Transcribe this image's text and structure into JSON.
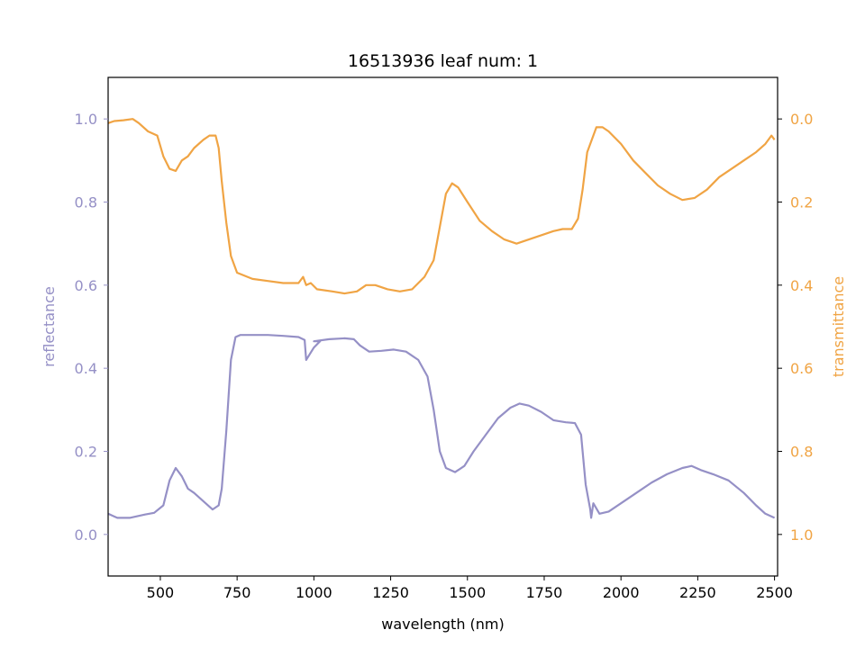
{
  "chart_data": {
    "type": "line",
    "title": "16513936 leaf num: 1",
    "xlabel": "wavelength (nm)",
    "ylabel": "reflectance",
    "ylabel_right": "transmittance",
    "xlim": [
      330,
      2510
    ],
    "ylim": [
      -0.1,
      1.1
    ],
    "ylim_right": [
      1.1,
      -0.1
    ],
    "right_axis_inverted": true,
    "x_ticks": [
      "500",
      "750",
      "1000",
      "1250",
      "1500",
      "1750",
      "2000",
      "2250",
      "2500"
    ],
    "y_ticks_left": [
      "0.0",
      "0.2",
      "0.4",
      "0.6",
      "0.8",
      "1.0"
    ],
    "y_ticks_right": [
      "0.0",
      "0.2",
      "0.4",
      "0.6",
      "0.8",
      "1.0"
    ],
    "grid": false,
    "colors": {
      "reflectance": "#9590c6",
      "transmittance": "#f0a444",
      "axes": "#000000"
    },
    "series": [
      {
        "axis": "left",
        "color": "#9590c6",
        "points": [
          [
            330,
            0.05
          ],
          [
            360,
            0.04
          ],
          [
            400,
            0.04
          ],
          [
            450,
            0.048
          ],
          [
            480,
            0.052
          ],
          [
            510,
            0.07
          ],
          [
            530,
            0.13
          ],
          [
            550,
            0.16
          ],
          [
            570,
            0.14
          ],
          [
            590,
            0.11
          ],
          [
            610,
            0.1
          ],
          [
            640,
            0.08
          ],
          [
            670,
            0.06
          ],
          [
            690,
            0.07
          ],
          [
            700,
            0.11
          ],
          [
            715,
            0.25
          ],
          [
            730,
            0.42
          ],
          [
            745,
            0.475
          ],
          [
            760,
            0.48
          ],
          [
            800,
            0.48
          ],
          [
            850,
            0.48
          ],
          [
            900,
            0.478
          ],
          [
            950,
            0.475
          ],
          [
            970,
            0.468
          ],
          [
            975,
            0.42
          ],
          [
            1000,
            0.45
          ],
          [
            1020,
            0.465
          ],
          [
            1000,
            0.465
          ],
          [
            1050,
            0.47
          ],
          [
            1100,
            0.472
          ],
          [
            1130,
            0.47
          ],
          [
            1150,
            0.455
          ],
          [
            1180,
            0.44
          ],
          [
            1220,
            0.442
          ],
          [
            1260,
            0.445
          ],
          [
            1300,
            0.44
          ],
          [
            1340,
            0.42
          ],
          [
            1370,
            0.38
          ],
          [
            1390,
            0.3
          ],
          [
            1410,
            0.2
          ],
          [
            1430,
            0.16
          ],
          [
            1460,
            0.15
          ],
          [
            1490,
            0.165
          ],
          [
            1520,
            0.2
          ],
          [
            1560,
            0.24
          ],
          [
            1600,
            0.28
          ],
          [
            1640,
            0.305
          ],
          [
            1670,
            0.315
          ],
          [
            1700,
            0.31
          ],
          [
            1740,
            0.295
          ],
          [
            1780,
            0.275
          ],
          [
            1820,
            0.27
          ],
          [
            1850,
            0.268
          ],
          [
            1870,
            0.24
          ],
          [
            1885,
            0.12
          ],
          [
            1895,
            0.08
          ],
          [
            1900,
            0.06
          ],
          [
            1903,
            0.04
          ],
          [
            1910,
            0.075
          ],
          [
            1930,
            0.05
          ],
          [
            1960,
            0.055
          ],
          [
            2000,
            0.075
          ],
          [
            2050,
            0.1
          ],
          [
            2100,
            0.125
          ],
          [
            2150,
            0.145
          ],
          [
            2200,
            0.16
          ],
          [
            2230,
            0.165
          ],
          [
            2260,
            0.155
          ],
          [
            2300,
            0.145
          ],
          [
            2350,
            0.13
          ],
          [
            2400,
            0.1
          ],
          [
            2440,
            0.07
          ],
          [
            2470,
            0.05
          ],
          [
            2500,
            0.04
          ]
        ]
      },
      {
        "axis": "right",
        "color": "#f0a444",
        "points": [
          [
            330,
            0.01
          ],
          [
            350,
            0.005
          ],
          [
            380,
            0.003
          ],
          [
            410,
            0.0
          ],
          [
            430,
            0.01
          ],
          [
            460,
            0.03
          ],
          [
            490,
            0.04
          ],
          [
            510,
            0.09
          ],
          [
            530,
            0.12
          ],
          [
            550,
            0.125
          ],
          [
            570,
            0.1
          ],
          [
            590,
            0.09
          ],
          [
            610,
            0.07
          ],
          [
            640,
            0.05
          ],
          [
            660,
            0.04
          ],
          [
            680,
            0.04
          ],
          [
            690,
            0.07
          ],
          [
            700,
            0.15
          ],
          [
            715,
            0.25
          ],
          [
            730,
            0.33
          ],
          [
            750,
            0.37
          ],
          [
            800,
            0.385
          ],
          [
            850,
            0.39
          ],
          [
            900,
            0.395
          ],
          [
            950,
            0.395
          ],
          [
            965,
            0.38
          ],
          [
            975,
            0.4
          ],
          [
            990,
            0.395
          ],
          [
            1010,
            0.41
          ],
          [
            1060,
            0.415
          ],
          [
            1100,
            0.42
          ],
          [
            1140,
            0.415
          ],
          [
            1170,
            0.4
          ],
          [
            1200,
            0.4
          ],
          [
            1240,
            0.41
          ],
          [
            1280,
            0.415
          ],
          [
            1320,
            0.41
          ],
          [
            1360,
            0.38
          ],
          [
            1390,
            0.34
          ],
          [
            1410,
            0.26
          ],
          [
            1430,
            0.18
          ],
          [
            1450,
            0.155
          ],
          [
            1470,
            0.165
          ],
          [
            1500,
            0.2
          ],
          [
            1540,
            0.245
          ],
          [
            1580,
            0.27
          ],
          [
            1620,
            0.29
          ],
          [
            1660,
            0.3
          ],
          [
            1700,
            0.29
          ],
          [
            1740,
            0.28
          ],
          [
            1780,
            0.27
          ],
          [
            1810,
            0.265
          ],
          [
            1840,
            0.265
          ],
          [
            1860,
            0.24
          ],
          [
            1875,
            0.17
          ],
          [
            1890,
            0.08
          ],
          [
            1905,
            0.05
          ],
          [
            1920,
            0.02
          ],
          [
            1940,
            0.02
          ],
          [
            1960,
            0.03
          ],
          [
            2000,
            0.06
          ],
          [
            2040,
            0.1
          ],
          [
            2080,
            0.13
          ],
          [
            2120,
            0.16
          ],
          [
            2160,
            0.18
          ],
          [
            2200,
            0.195
          ],
          [
            2240,
            0.19
          ],
          [
            2280,
            0.17
          ],
          [
            2320,
            0.14
          ],
          [
            2360,
            0.12
          ],
          [
            2400,
            0.1
          ],
          [
            2440,
            0.08
          ],
          [
            2470,
            0.06
          ],
          [
            2490,
            0.04
          ],
          [
            2500,
            0.05
          ]
        ]
      }
    ]
  }
}
